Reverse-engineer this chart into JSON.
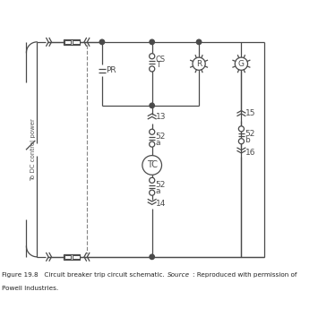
{
  "bg_color": "#ffffff",
  "line_color": "#4a4a4a",
  "figsize": [
    3.55,
    3.54
  ],
  "dpi": 100,
  "caption_line1": "Figure 19.8    Circuit breaker trip circuit schematic. ",
  "caption_source": "Source",
  "caption_line1b": ": Reproduced with permission of",
  "caption_line2": "Powell Industries.",
  "label_dc": "To DC control power"
}
